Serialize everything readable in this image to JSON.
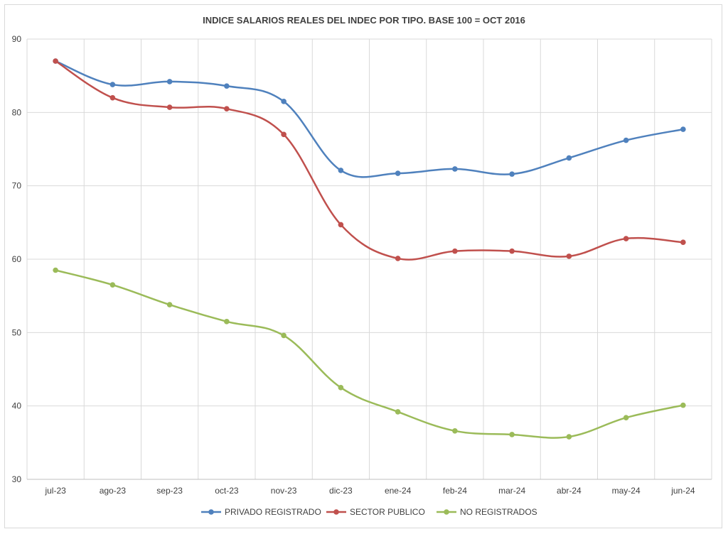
{
  "chart_data": {
    "type": "line",
    "title": "INDICE SALARIOS REALES DEL INDEC POR TIPO.  BASE 100 = OCT 2016",
    "xlabel": "",
    "ylabel": "",
    "categories": [
      "jul-23",
      "ago-23",
      "sep-23",
      "oct-23",
      "nov-23",
      "dic-23",
      "ene-24",
      "feb-24",
      "mar-24",
      "abr-24",
      "may-24",
      "jun-24"
    ],
    "ylim": [
      30,
      90
    ],
    "yticks": [
      30,
      40,
      50,
      60,
      70,
      80,
      90
    ],
    "grid": true,
    "legend_position": "bottom",
    "series": [
      {
        "name": "PRIVADO REGISTRADO",
        "color": "#4f81bd",
        "values": [
          87.0,
          83.8,
          84.2,
          83.6,
          81.5,
          72.1,
          71.7,
          72.3,
          71.6,
          73.8,
          76.2,
          77.7
        ]
      },
      {
        "name": "SECTOR PUBLICO",
        "color": "#c0504d",
        "values": [
          87.0,
          82.0,
          80.7,
          80.5,
          77.0,
          64.7,
          60.1,
          61.1,
          61.1,
          60.4,
          62.8,
          62.3
        ]
      },
      {
        "name": "NO REGISTRADOS",
        "color": "#9bbb59",
        "values": [
          58.5,
          56.5,
          53.8,
          51.5,
          49.6,
          42.5,
          39.2,
          36.6,
          36.1,
          35.8,
          38.4,
          40.1
        ]
      }
    ]
  }
}
